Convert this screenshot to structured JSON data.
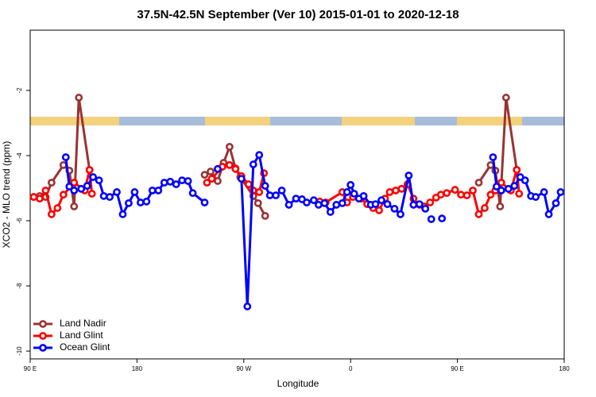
{
  "chart_data": {
    "type": "line",
    "title": "37.5N-42.5N September (Ver 10)   2015-01-01 to 2020-12-18",
    "x_label": "Longitude",
    "y_label": "XCO2 - MLO trend (ppm)",
    "xlim": [
      90,
      540
    ],
    "ylim": [
      -10.24,
      -0.15
    ],
    "xticks": [
      {
        "value": 90,
        "label": "90 E"
      },
      {
        "value": 180,
        "label": "180"
      },
      {
        "value": 270,
        "label": "90 W"
      },
      {
        "value": 360,
        "label": "0"
      },
      {
        "value": 450,
        "label": "90 E"
      },
      {
        "value": 540,
        "label": "180"
      }
    ],
    "yticks": [
      -2,
      -4,
      -6,
      -8,
      -10
    ],
    "legend": "bottomleft",
    "series": [
      {
        "name": "Land Nadir",
        "color": "#993333",
        "x": [
          93,
          98,
          103,
          108,
          118,
          123,
          127,
          131,
          140,
          null,
          237,
          242,
          248,
          253,
          258,
          263,
          267,
          278,
          282,
          288,
          null,
          468,
          478,
          482,
          486,
          491,
          500
        ],
        "values": [
          -5.27,
          -5.24,
          -5.27,
          -4.83,
          -4.29,
          -4.46,
          -5.56,
          -2.22,
          -4.44,
          null,
          -4.59,
          -4.49,
          -4.78,
          -4.22,
          -3.73,
          -4.39,
          -4.66,
          -5.24,
          -5.46,
          -5.85,
          null,
          -4.83,
          -4.29,
          -4.46,
          -5.56,
          -2.22,
          -4.44
        ]
      },
      {
        "name": "Land Glint",
        "color": "#ff0000",
        "x": [
          93,
          98,
          103,
          108,
          113,
          118,
          127,
          136,
          140,
          142,
          null,
          239,
          243,
          252,
          258,
          263,
          268,
          274,
          278,
          283,
          287,
          null,
          334,
          339,
          353,
          357,
          362,
          369,
          374,
          379,
          384,
          389,
          393,
          398,
          403,
          408,
          413,
          418,
          422,
          427,
          432,
          436,
          441,
          448,
          453,
          458,
          463,
          468,
          473,
          478,
          482,
          487,
          495,
          500,
          502
        ],
        "values": [
          -5.27,
          -5.32,
          -5.07,
          -5.8,
          -5.61,
          -5.2,
          -4.83,
          -5.07,
          -4.44,
          -5.17,
          null,
          -4.83,
          -4.71,
          -4.34,
          -4.29,
          -4.41,
          -4.63,
          -4.88,
          -5.07,
          -5.12,
          -4.54,
          null,
          -5.41,
          -5.44,
          -5.12,
          -5.44,
          -5.27,
          -5.32,
          -5.49,
          -5.61,
          -5.68,
          -5.32,
          -5.12,
          -5.07,
          -5.02,
          -4.88,
          -5.32,
          -5.51,
          -5.56,
          -5.44,
          -5.29,
          -5.2,
          -5.15,
          -5.05,
          -5.2,
          -5.22,
          -5.07,
          -5.8,
          -5.61,
          -5.2,
          -5.07,
          -4.83,
          -5.07,
          -4.44,
          -5.17
        ]
      },
      {
        "name": "Ocean Glint",
        "color": "#0000ff",
        "x": [
          120,
          123,
          127,
          133,
          138,
          143,
          148,
          152,
          157,
          163,
          168,
          173,
          178,
          183,
          188,
          193,
          198,
          203,
          208,
          213,
          218,
          223,
          227,
          237,
          null,
          248,
          null,
          268,
          273,
          278,
          283,
          288,
          292,
          297,
          302,
          308,
          314,
          319,
          323,
          329,
          333,
          338,
          343,
          348,
          353,
          357,
          360,
          363,
          367,
          371,
          377,
          381,
          386,
          391,
          397,
          402,
          409,
          413,
          418,
          423,
          null,
          428,
          null,
          437,
          null,
          480,
          483,
          487,
          493,
          498,
          503,
          507,
          512,
          516,
          523,
          527,
          533,
          537
        ],
        "values": [
          -4.05,
          -4.95,
          -5.07,
          -5.02,
          -4.93,
          -4.66,
          -4.76,
          -5.24,
          -5.27,
          -5.12,
          -5.8,
          -5.46,
          -5.12,
          -5.44,
          -5.41,
          -5.07,
          -5.07,
          -4.83,
          -4.8,
          -4.88,
          -4.76,
          -4.78,
          -5.15,
          -5.44,
          null,
          -4.41,
          null,
          -4.71,
          -8.63,
          -4.27,
          -3.98,
          -4.93,
          -5.22,
          -5.22,
          -5.07,
          -5.51,
          -5.32,
          -5.34,
          -5.44,
          -5.37,
          -5.51,
          -5.46,
          -5.73,
          -5.51,
          -5.46,
          -5.12,
          -4.9,
          -5.17,
          -5.32,
          -5.24,
          -5.51,
          -5.49,
          -5.37,
          -5.49,
          -5.63,
          -5.8,
          -4.61,
          -5.51,
          -5.49,
          -5.63,
          null,
          -5.95,
          null,
          -5.93,
          null,
          -4.05,
          -4.95,
          -5.07,
          -5.02,
          -4.93,
          -4.66,
          -4.76,
          -5.24,
          -5.27,
          -5.12,
          -5.8,
          -5.46,
          -5.12
        ]
      }
    ]
  }
}
